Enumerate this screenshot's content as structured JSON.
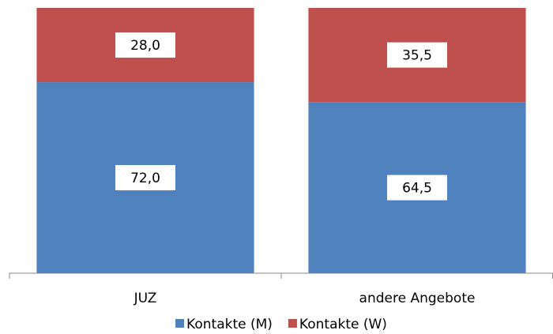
{
  "chart_data": {
    "type": "bar",
    "stacked": true,
    "categories": [
      "JUZ",
      "andere Angebote"
    ],
    "series": [
      {
        "name": "Kontakte (M)",
        "color": "#4f81bd",
        "values": [
          72.0,
          64.5
        ],
        "value_labels": [
          "72,0",
          "64,5"
        ]
      },
      {
        "name": "Kontakte (W)",
        "color": "#c0504d",
        "values": [
          28.0,
          35.5
        ],
        "value_labels": [
          "28,0",
          "35,5"
        ]
      }
    ],
    "ylim": [
      0,
      100
    ],
    "legend": "bottom"
  }
}
